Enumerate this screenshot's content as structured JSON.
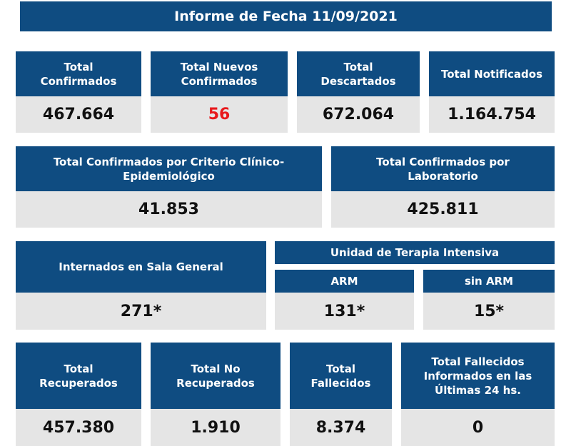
{
  "header": {
    "title": "Informe de Fecha 11/09/2021"
  },
  "cards": [
    {
      "label": "Total Confirmados",
      "value": "467.664"
    },
    {
      "label": "Total Nuevos Confirmados",
      "value": "56"
    },
    {
      "label": "Total Descartados",
      "value": "672.064"
    },
    {
      "label": "Total Notificados",
      "value": "1.164.754"
    },
    {
      "label": "Total Confirmados por Criterio Clínico-Epidemiológico",
      "value": "41.853"
    },
    {
      "label": "Total Confirmados por Laboratorio",
      "value": "425.811"
    },
    {
      "label": "Internados en Sala General",
      "value": "271*"
    },
    {
      "label": "Total Recuperados",
      "value": "457.380"
    },
    {
      "label": "Total No Recuperados",
      "value": "1.910"
    },
    {
      "label": "Total Fallecidos",
      "value": "8.374"
    },
    {
      "label": "Total Fallecidos Informados en las Últimas 24 hs.",
      "value": "0"
    }
  ],
  "uti": {
    "title": "Unidad de Terapia Intensiva",
    "columns": [
      {
        "label": "ARM",
        "value": "131*"
      },
      {
        "label": "sin ARM",
        "value": "15*"
      }
    ]
  }
}
